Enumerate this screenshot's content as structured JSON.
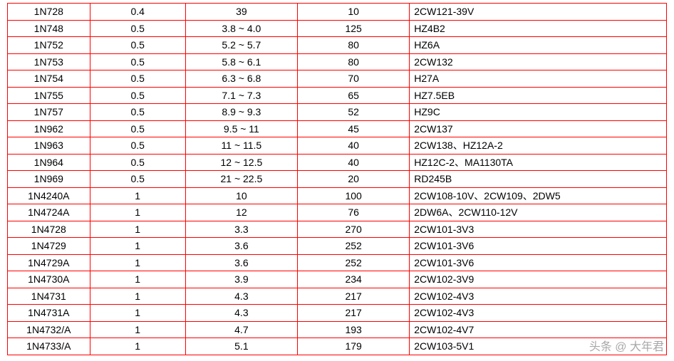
{
  "table": {
    "border_color": "#ff0000",
    "background_color": "#ffffff",
    "text_color": "#000000",
    "font_size": 14,
    "row_height": 23.5,
    "columns": [
      {
        "key": "model",
        "width_pct": 12.5,
        "align": "center"
      },
      {
        "key": "power",
        "width_pct": 14.5,
        "align": "center"
      },
      {
        "key": "voltage",
        "width_pct": 17.0,
        "align": "center"
      },
      {
        "key": "current",
        "width_pct": 17.0,
        "align": "center"
      },
      {
        "key": "equiv",
        "width_pct": 39.0,
        "align": "left"
      }
    ],
    "rows": [
      [
        "1N728",
        "0.4",
        "39",
        "10",
        "2CW121-39V"
      ],
      [
        "1N748",
        "0.5",
        "3.8 ~ 4.0",
        "125",
        "HZ4B2"
      ],
      [
        "1N752",
        "0.5",
        "5.2 ~ 5.7",
        "80",
        "HZ6A"
      ],
      [
        "1N753",
        "0.5",
        "5.8 ~ 6.1",
        "80",
        "2CW132"
      ],
      [
        "1N754",
        "0.5",
        "6.3 ~ 6.8",
        "70",
        "H27A"
      ],
      [
        "1N755",
        "0.5",
        "7.1 ~ 7.3",
        "65",
        "HZ7.5EB"
      ],
      [
        "1N757",
        "0.5",
        "8.9 ~ 9.3",
        "52",
        "HZ9C"
      ],
      [
        "1N962",
        "0.5",
        "9.5 ~ 11",
        "45",
        "2CW137"
      ],
      [
        "1N963",
        "0.5",
        "11 ~ 11.5",
        "40",
        "2CW138、HZ12A-2"
      ],
      [
        "1N964",
        "0.5",
        "12 ~ 12.5",
        "40",
        "HZ12C-2、MA1130TA"
      ],
      [
        "1N969",
        "0.5",
        "21 ~ 22.5",
        "20",
        "RD245B"
      ],
      [
        "1N4240A",
        "1",
        "10",
        "100",
        "2CW108-10V、2CW109、2DW5"
      ],
      [
        "1N4724A",
        "1",
        "12",
        "76",
        "2DW6A、2CW110-12V"
      ],
      [
        "1N4728",
        "1",
        "3.3",
        "270",
        "2CW101-3V3"
      ],
      [
        "1N4729",
        "1",
        "3.6",
        "252",
        "2CW101-3V6"
      ],
      [
        "1N4729A",
        "1",
        "3.6",
        "252",
        "2CW101-3V6"
      ],
      [
        "1N4730A",
        "1",
        "3.9",
        "234",
        "2CW102-3V9"
      ],
      [
        "1N4731",
        "1",
        "4.3",
        "217",
        "2CW102-4V3"
      ],
      [
        "1N4731A",
        "1",
        "4.3",
        "217",
        "2CW102-4V3"
      ],
      [
        "1N4732/A",
        "1",
        "4.7",
        "193",
        "2CW102-4V7"
      ],
      [
        "1N4733/A",
        "1",
        "5.1",
        "179",
        "2CW103-5V1"
      ]
    ]
  },
  "watermark": {
    "text": "头条 @ 大年君"
  }
}
